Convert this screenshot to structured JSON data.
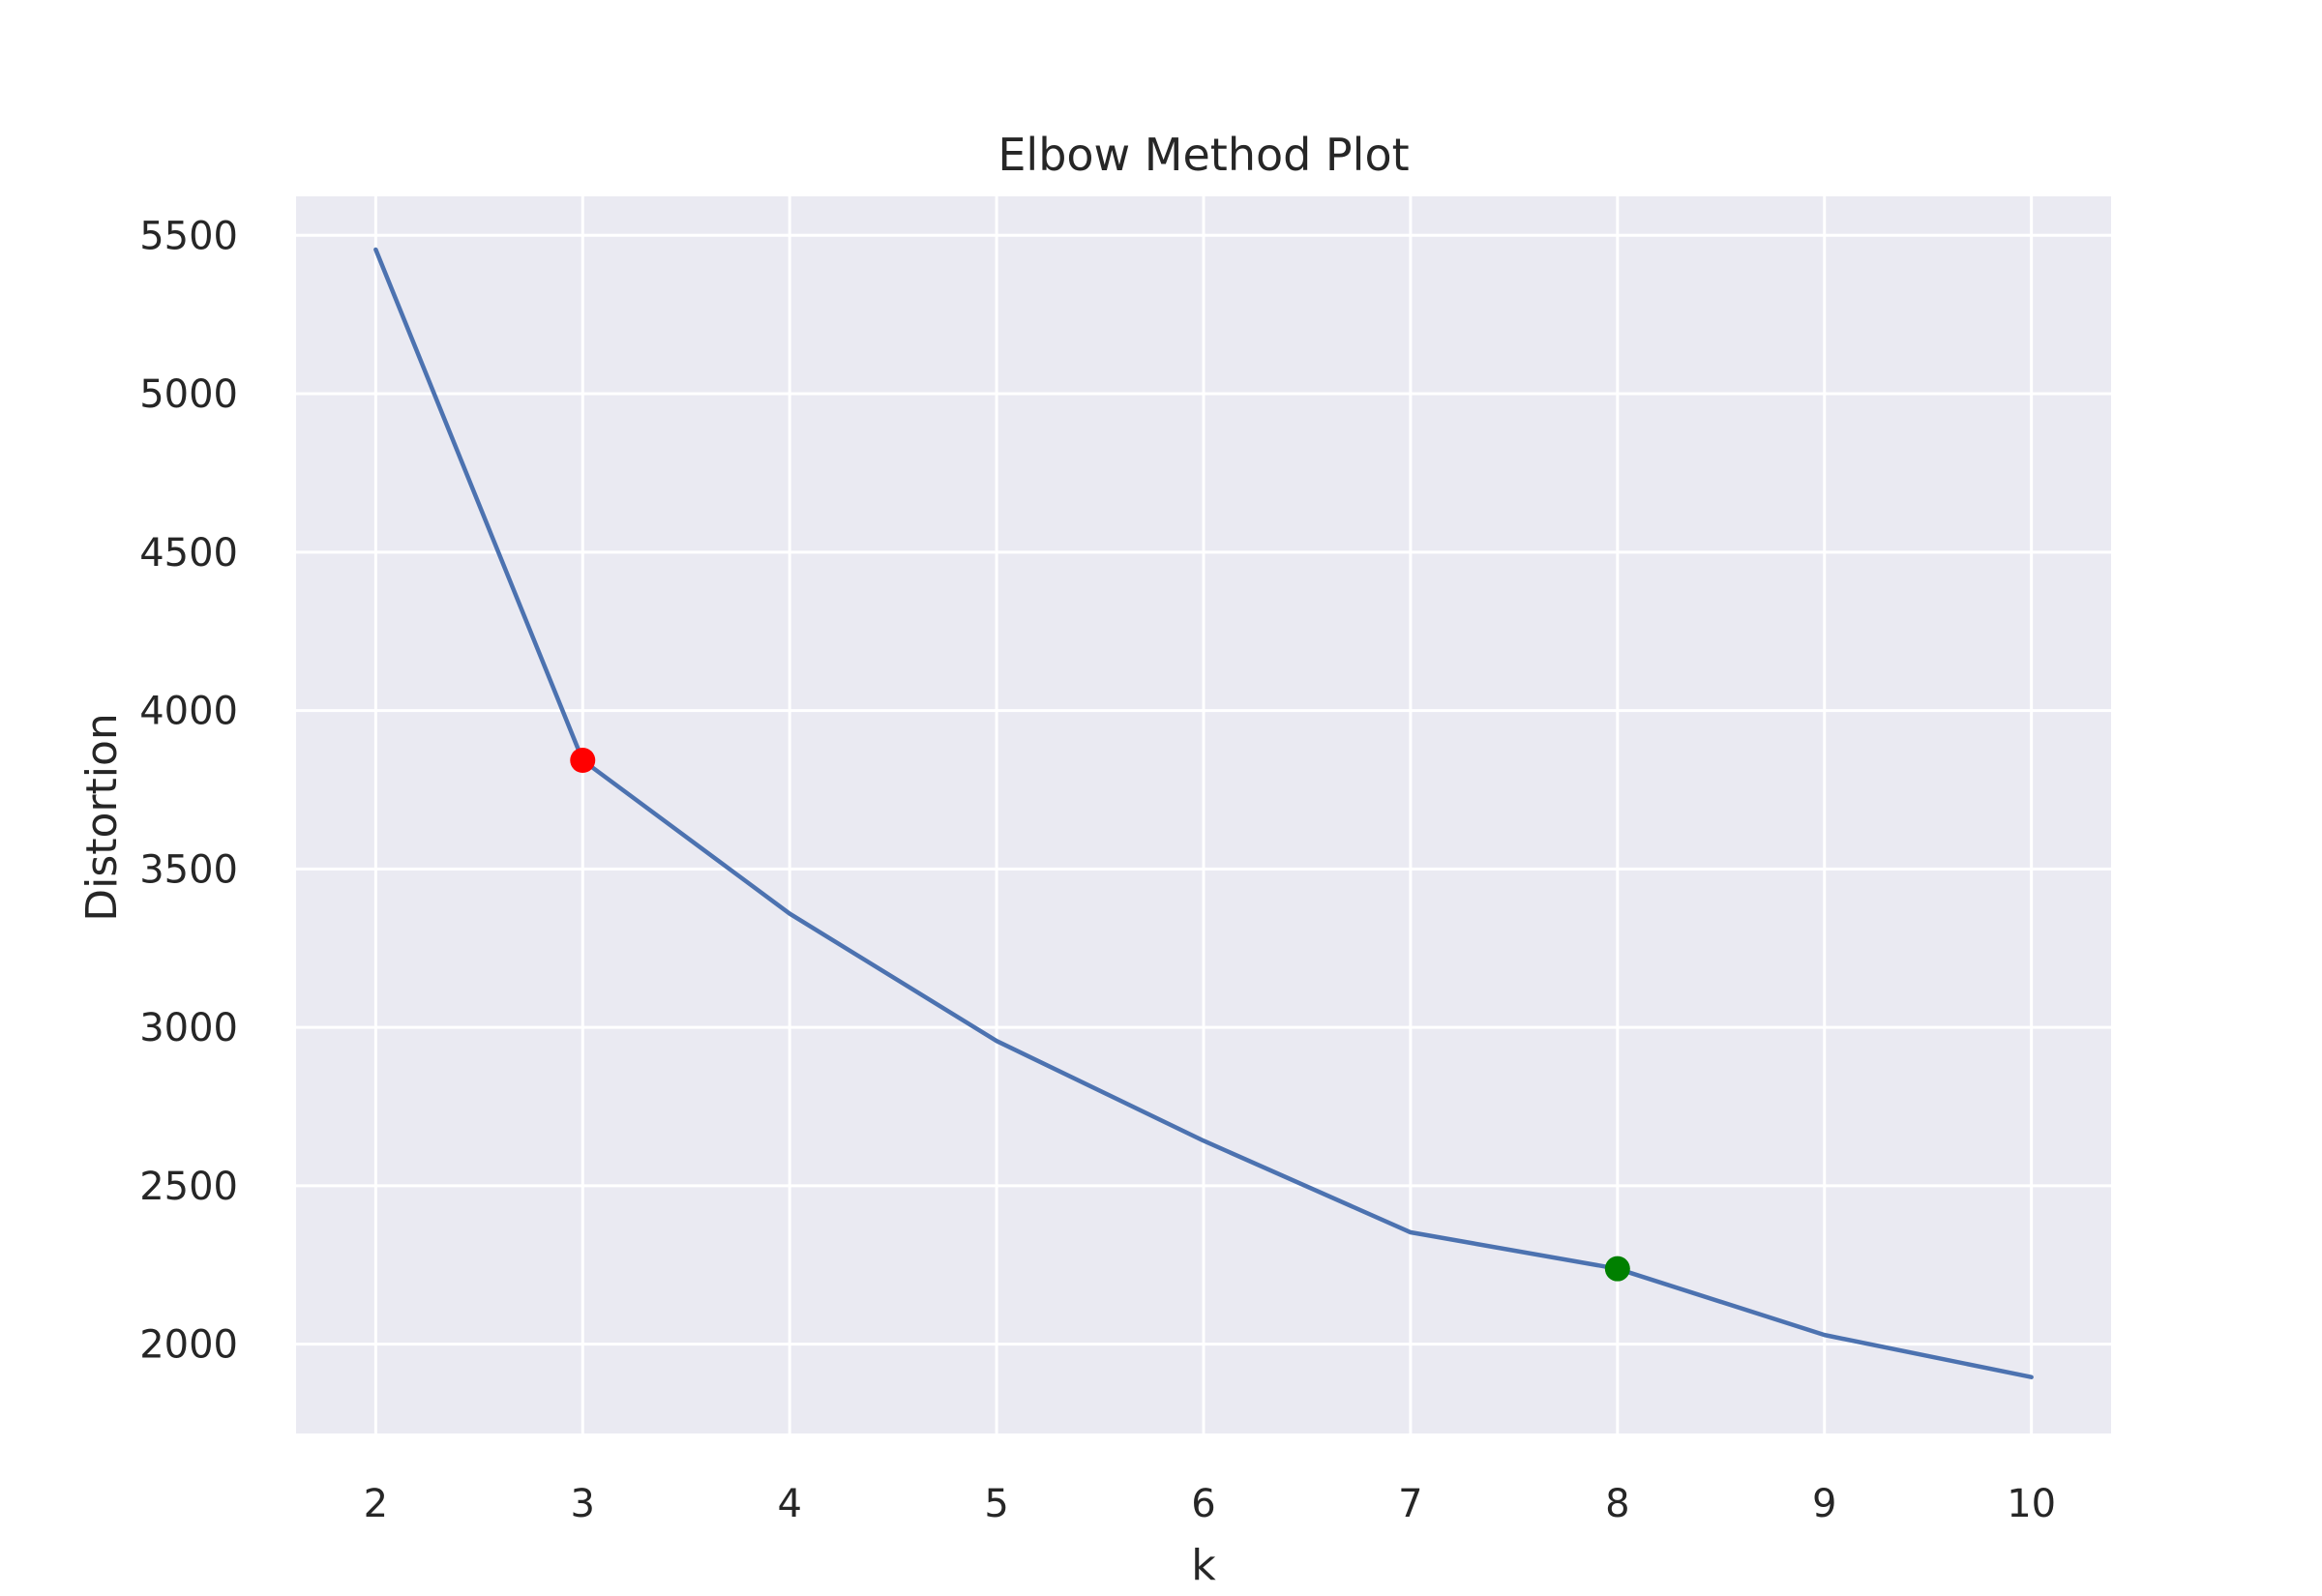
{
  "chart_data": {
    "type": "line",
    "title": "Elbow Method Plot",
    "xlabel": "k",
    "ylabel": "Distortion",
    "x": [
      2,
      3,
      4,
      5,
      6,
      7,
      8,
      9,
      10
    ],
    "series": [
      {
        "values": [
          5455,
          3843,
          3359,
          2957,
          2642,
          2353,
          2238,
          2029,
          1896
        ],
        "color": "#4c72b0"
      }
    ],
    "highlights": [
      {
        "x": 3,
        "y": 3843,
        "color": "#ff0000"
      },
      {
        "x": 8,
        "y": 2238,
        "color": "#008000"
      }
    ],
    "xticks": [
      2,
      3,
      4,
      5,
      6,
      7,
      8,
      9,
      10
    ],
    "xtick_labels": [
      "2",
      "3",
      "4",
      "5",
      "6",
      "7",
      "8",
      "9",
      "10"
    ],
    "yticks": [
      2000,
      2500,
      3000,
      3500,
      4000,
      4500,
      5000,
      5500
    ],
    "ytick_labels": [
      "2000",
      "2500",
      "3000",
      "3500",
      "4000",
      "4500",
      "5000",
      "5500"
    ],
    "xlim": [
      1.615,
      10.385
    ],
    "ylim": [
      1718,
      5623
    ],
    "grid": true,
    "background": "#eaeaf2",
    "grid_color": "#ffffff"
  }
}
